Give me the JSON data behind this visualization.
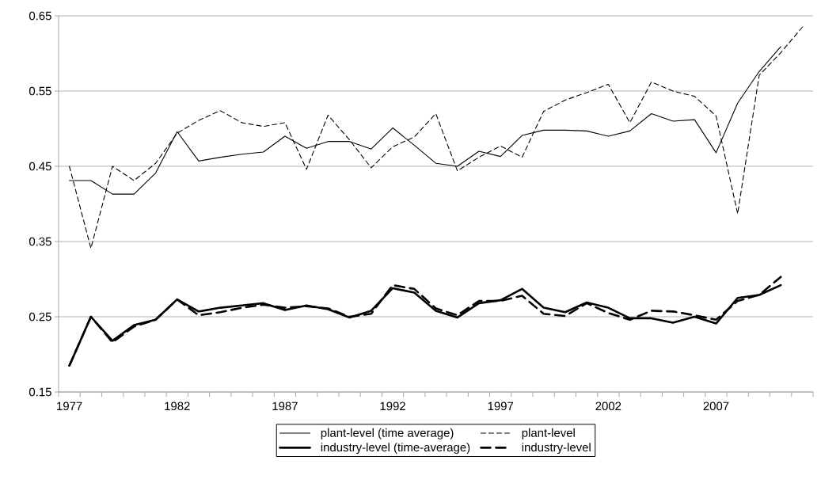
{
  "chart_data": {
    "type": "line",
    "categories": [
      "1977",
      null,
      null,
      null,
      null,
      "1982",
      null,
      null,
      null,
      null,
      "1987",
      null,
      null,
      null,
      null,
      "1992",
      null,
      null,
      null,
      null,
      "1997",
      null,
      null,
      null,
      null,
      "2002",
      null,
      null,
      null,
      null,
      "2007",
      null,
      null,
      null,
      null
    ],
    "series": [
      {
        "name": "plant-level (time average)",
        "color": "#000000",
        "line_style": "solid",
        "values": [
          0.431,
          0.431,
          0.413,
          0.413,
          0.441,
          0.496,
          0.457,
          0.462,
          0.466,
          0.469,
          0.49,
          0.474,
          0.483,
          0.483,
          0.473,
          0.501,
          0.478,
          0.454,
          0.45,
          0.47,
          0.463,
          0.491,
          0.498,
          0.498,
          0.497,
          0.49,
          0.497,
          0.52,
          0.51,
          0.512,
          0.468,
          0.534,
          0.576,
          0.609,
          null
        ]
      },
      {
        "name": "plant-level",
        "color": "#000000",
        "line_style": "dashed",
        "values": [
          0.45,
          0.341,
          0.45,
          0.431,
          0.454,
          0.494,
          0.511,
          0.524,
          0.508,
          0.503,
          0.508,
          0.446,
          0.518,
          0.485,
          0.448,
          0.476,
          0.489,
          0.52,
          0.444,
          0.462,
          0.477,
          0.462,
          0.523,
          0.538,
          0.548,
          0.559,
          0.508,
          0.562,
          0.55,
          0.543,
          0.517,
          0.387,
          0.571,
          0.601,
          0.635
        ]
      },
      {
        "name": "industry-level (time-average)",
        "color": "#000000",
        "line_style": "solid",
        "values": [
          0.185,
          0.25,
          0.218,
          0.239,
          0.246,
          0.273,
          0.257,
          0.262,
          0.265,
          0.268,
          0.259,
          0.265,
          0.26,
          0.249,
          0.258,
          0.288,
          0.282,
          0.258,
          0.249,
          0.268,
          0.272,
          0.287,
          0.262,
          0.256,
          0.269,
          0.262,
          0.248,
          0.248,
          0.242,
          0.25,
          0.241,
          0.275,
          0.279,
          0.292,
          null
        ]
      },
      {
        "name": "industry-level",
        "color": "#000000",
        "line_style": "dashed",
        "values": [
          0.185,
          0.25,
          0.216,
          0.237,
          0.246,
          0.273,
          0.252,
          0.256,
          0.262,
          0.266,
          0.262,
          0.264,
          0.261,
          0.25,
          0.254,
          0.292,
          0.287,
          0.261,
          0.252,
          0.271,
          0.271,
          0.278,
          0.254,
          0.251,
          0.268,
          0.255,
          0.246,
          0.258,
          0.257,
          0.252,
          0.246,
          0.271,
          0.279,
          0.303,
          null
        ]
      }
    ],
    "ylim": [
      0.15,
      0.65
    ],
    "yticks": [
      0.15,
      0.25,
      0.35,
      0.45,
      0.55,
      0.65
    ],
    "grid": "y",
    "legend": "bottom",
    "marker": "none"
  }
}
